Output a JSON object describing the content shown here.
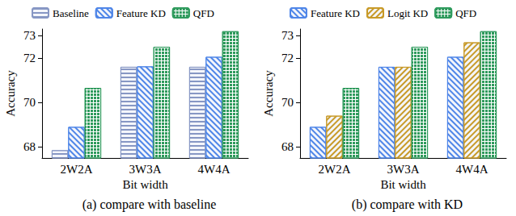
{
  "chart_data": [
    {
      "type": "bar",
      "title": "(a) compare with baseline",
      "x_label": "Bit width",
      "y_label": "Accuracy",
      "categories": [
        "2W2A",
        "3W3A",
        "4W4A"
      ],
      "series": [
        {
          "name": "Baseline",
          "color": "#8797c4",
          "values": [
            67.85,
            71.6,
            71.6
          ]
        },
        {
          "name": "Feature KD",
          "color": "#4f86e8",
          "values": [
            68.9,
            71.62,
            72.05
          ]
        },
        {
          "name": "QFD",
          "color": "#2e9a5c",
          "values": [
            70.65,
            72.5,
            73.2
          ]
        }
      ],
      "ylim": [
        67.5,
        73.3
      ],
      "yticks": [
        68,
        70,
        72,
        73
      ],
      "grid": false,
      "legend": "top"
    },
    {
      "type": "bar",
      "title": "(b) compare with KD",
      "x_label": "Bit width",
      "y_label": "Accuracy",
      "categories": [
        "2W2A",
        "3W3A",
        "4W4A"
      ],
      "series": [
        {
          "name": "Feature KD",
          "color": "#4f86e8",
          "values": [
            68.9,
            71.6,
            72.05
          ]
        },
        {
          "name": "Logit KD",
          "color": "#c89a28",
          "values": [
            69.4,
            71.6,
            72.7
          ]
        },
        {
          "name": "QFD",
          "color": "#2e9a5c",
          "values": [
            70.65,
            72.5,
            73.2
          ]
        }
      ],
      "ylim": [
        67.5,
        73.3
      ],
      "yticks": [
        68,
        70,
        72,
        73
      ],
      "grid": false,
      "legend": "top"
    }
  ]
}
